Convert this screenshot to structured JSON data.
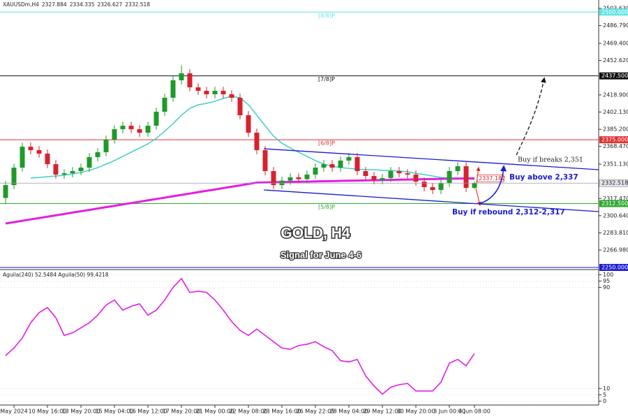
{
  "chart_data": [
    {
      "type": "candlestick",
      "symbol": "XAUUSDm,H4",
      "title": "GOLD,  H4",
      "subtitle": "Signal for June 4-6",
      "annotations": [
        "Buy if breaks 2,351",
        "Buy above 2,337",
        "Buy if rebound 2,312-2,317"
      ],
      "categories": [
        null,
        "May 2024",
        null,
        null,
        null,
        "10 May 16:00",
        null,
        null,
        null,
        "13 May 20:00",
        null,
        null,
        null,
        "15 May 04:00",
        null,
        null,
        null,
        "16 May 12:00",
        null,
        null,
        null,
        "17 May 20:00",
        null,
        null,
        null,
        "21 May 00:00",
        null,
        null,
        null,
        "22 May 08:00",
        null,
        null,
        null,
        "23 May 16:00",
        null,
        null,
        null,
        "26 May 22:05",
        null,
        null,
        null,
        "28 May 04:00",
        null,
        null,
        null,
        "29 May 12:00",
        null,
        null,
        null,
        "30 May 20:00",
        null,
        null,
        null,
        "3 Jun 00:00",
        null,
        null,
        "4 Jun 08:00"
      ],
      "open": [
        2318.0,
        2330.6,
        2347.7,
        2368.2,
        2364.8,
        2361.4,
        2351.1,
        2340.9,
        2342.2,
        2344.3,
        2347.7,
        2358.0,
        2362.8,
        2375.1,
        2385.3,
        2388.7,
        2385.3,
        2381.9,
        2388.7,
        2402.4,
        2416.1,
        2433.2,
        2440.0,
        2426.3,
        2422.9,
        2419.5,
        2422.9,
        2419.5,
        2416.1,
        2399.0,
        2381.9,
        2364.8,
        2344.3,
        2330.6,
        2335.0,
        2338.2,
        2336.4,
        2340.9,
        2347.7,
        2351.1,
        2347.7,
        2354.6,
        2358.0,
        2344.3,
        2339.5,
        2335.4,
        2337.5,
        2344.3,
        2342.2,
        2340.9,
        2334.0,
        2328.6,
        2325.8,
        2332.7,
        2344.3,
        2349.1,
        2327.884
      ],
      "high": [
        2334.6,
        2351.7,
        2372.2,
        2372.2,
        2368.8,
        2365.4,
        2355.1,
        2346.2,
        2348.3,
        2351.7,
        2362.0,
        2366.8,
        2379.1,
        2389.3,
        2392.7,
        2392.7,
        2389.3,
        2392.7,
        2406.4,
        2420.1,
        2437.2,
        2448.0,
        2444.0,
        2430.3,
        2426.9,
        2426.9,
        2426.9,
        2423.5,
        2420.1,
        2403.0,
        2385.9,
        2368.8,
        2348.3,
        2339.0,
        2342.2,
        2342.2,
        2344.9,
        2351.7,
        2355.1,
        2355.1,
        2358.6,
        2362.0,
        2362.0,
        2348.3,
        2343.5,
        2341.5,
        2348.3,
        2348.3,
        2346.2,
        2344.9,
        2338.0,
        2332.6,
        2336.7,
        2348.3,
        2353.1,
        2353.1,
        2334.335
      ],
      "low": [
        2312.0,
        2326.6,
        2343.7,
        2360.8,
        2357.4,
        2347.1,
        2336.9,
        2336.9,
        2338.2,
        2340.3,
        2343.7,
        2354.0,
        2358.8,
        2371.1,
        2381.3,
        2381.3,
        2377.9,
        2377.9,
        2384.7,
        2398.4,
        2412.1,
        2429.2,
        2422.3,
        2418.9,
        2415.5,
        2415.5,
        2415.5,
        2412.1,
        2395.0,
        2377.9,
        2360.8,
        2340.3,
        2326.6,
        2326.6,
        2331.0,
        2332.4,
        2332.4,
        2336.9,
        2343.7,
        2343.7,
        2343.7,
        2350.6,
        2340.3,
        2335.5,
        2331.4,
        2331.4,
        2333.5,
        2338.2,
        2336.9,
        2330.0,
        2324.6,
        2321.8,
        2321.8,
        2328.7,
        2340.3,
        2323.9,
        2326.627
      ],
      "close": [
        2330.6,
        2347.7,
        2368.2,
        2364.8,
        2361.4,
        2351.1,
        2340.9,
        2342.2,
        2344.3,
        2347.7,
        2358.0,
        2362.8,
        2375.1,
        2385.3,
        2388.7,
        2385.3,
        2381.9,
        2388.7,
        2402.4,
        2416.1,
        2433.2,
        2440.0,
        2426.3,
        2422.9,
        2419.5,
        2422.9,
        2419.5,
        2416.1,
        2399.0,
        2381.9,
        2364.8,
        2344.3,
        2330.6,
        2335.0,
        2338.2,
        2336.4,
        2340.9,
        2347.7,
        2351.1,
        2347.7,
        2354.6,
        2358.0,
        2344.3,
        2339.5,
        2335.4,
        2337.5,
        2344.3,
        2342.2,
        2340.9,
        2334.0,
        2328.6,
        2325.8,
        2332.7,
        2344.3,
        2349.1,
        2327.884,
        2332.518
      ],
      "up_color": "#1f9a2a",
      "down_color": "#d6222e",
      "overlays": [
        {
          "color": "#3ecfc8",
          "values": [
            null,
            null,
            null,
            2337.5,
            2338.1,
            2338.8,
            2339.5,
            2340.2,
            2341.6,
            2342.9,
            2345.0,
            2347.7,
            2351.1,
            2354.6,
            2358.7,
            2362.8,
            2366.9,
            2371.0,
            2376.4,
            2383.3,
            2390.8,
            2399.0,
            2405.8,
            2409.2,
            2410.6,
            2412.7,
            2415.4,
            2417.5,
            2416.1,
            2409.2,
            2399.0,
            2388.7,
            2378.5,
            2371.6,
            2366.9,
            2362.8,
            2358.7,
            2354.6,
            2351.1,
            2349.1,
            2347.7,
            2347.0,
            2346.3,
            2345.7,
            2345.7,
            2345.0,
            2345.0,
            2344.3,
            2343.6,
            2342.2,
            2340.9,
            2339.5,
            2338.1,
            2337.5,
            2337.5,
            2336.8,
            2336.1
          ]
        },
        {
          "color": "#e21ee2",
          "values": [
            2293.0,
            2294.3,
            2295.7,
            2297.0,
            2298.3,
            2299.7,
            2301.0,
            2302.3,
            2303.7,
            2305.0,
            2306.3,
            2307.7,
            2309.0,
            2310.3,
            2311.7,
            2313.0,
            2314.3,
            2315.7,
            2317.0,
            2318.3,
            2319.7,
            2321.0,
            2322.3,
            2323.7,
            2325.0,
            2326.3,
            2327.7,
            2329.0,
            2330.3,
            2331.7,
            2333.0,
            2333.2,
            2333.4,
            2333.5,
            2333.7,
            2333.9,
            2334.0,
            2334.2,
            2334.4,
            2334.5,
            2334.7,
            2334.9,
            2335.0,
            2335.2,
            2335.4,
            2335.5,
            2335.7,
            2335.9,
            2336.0,
            2336.2,
            2336.4,
            2336.5,
            2336.7,
            2336.9,
            2337.0,
            2337.1,
            2337.182
          ]
        }
      ],
      "levels": {
        "names": [
          "[8/8]P",
          "[7/8]P",
          "[6/8]P",
          "[5/8]P",
          null
        ],
        "values": [
          2500,
          2437.5,
          2375,
          2312.5,
          2250
        ],
        "value_labels": [
          "2500.000",
          "2437.500",
          "2375.000",
          "2312.500",
          "2250.000"
        ],
        "colors": [
          "#5fe3e3",
          "#111111",
          "#e03030",
          "#2eaa2e",
          "#1a1ad0"
        ]
      },
      "ylim": [
        2248.6,
        2511.8
      ],
      "yticks": [
        {
          "value": 2503.63,
          "label": "2503.630"
        },
        {
          "value": 2486.79,
          "label": "2486.790"
        },
        {
          "value": 2469.4,
          "label": "2469.400"
        },
        {
          "value": 2452.62,
          "label": "2452.620"
        },
        {
          "value": 2418.9,
          "label": "2418.900"
        },
        {
          "value": 2402.13,
          "label": "2402.130"
        },
        {
          "value": 2385.2,
          "label": "2385.200"
        },
        {
          "value": 2368.47,
          "label": "2368.470"
        },
        {
          "value": 2351.13,
          "label": "2351.130"
        },
        {
          "value": 2317.47,
          "label": "2317.470"
        },
        {
          "value": 2300.64,
          "label": "2300.640"
        },
        {
          "value": 2283.81,
          "label": "2283.810"
        },
        {
          "value": 2266.98,
          "label": "2266.980"
        }
      ]
    },
    {
      "type": "line",
      "title": "Aguila(240) 52.5484 Aguila(50) 99.4218",
      "color": "#e21ee2",
      "values": [
        36,
        42,
        50,
        62,
        70,
        74,
        66,
        52,
        54,
        58,
        62,
        68,
        76,
        80,
        72,
        75,
        77,
        68,
        72,
        80,
        90,
        97,
        86,
        87,
        86,
        80,
        72,
        63,
        56,
        52,
        57,
        52,
        47,
        42,
        41,
        44,
        45,
        47,
        43,
        40,
        32,
        31,
        33,
        20,
        12,
        5.5,
        11,
        13,
        14,
        8,
        8,
        8,
        15,
        30,
        33,
        28,
        37.6
      ],
      "ylim": [
        -2,
        103
      ],
      "yticks": [
        100,
        95,
        90,
        10,
        5,
        0
      ]
    }
  ]
}
